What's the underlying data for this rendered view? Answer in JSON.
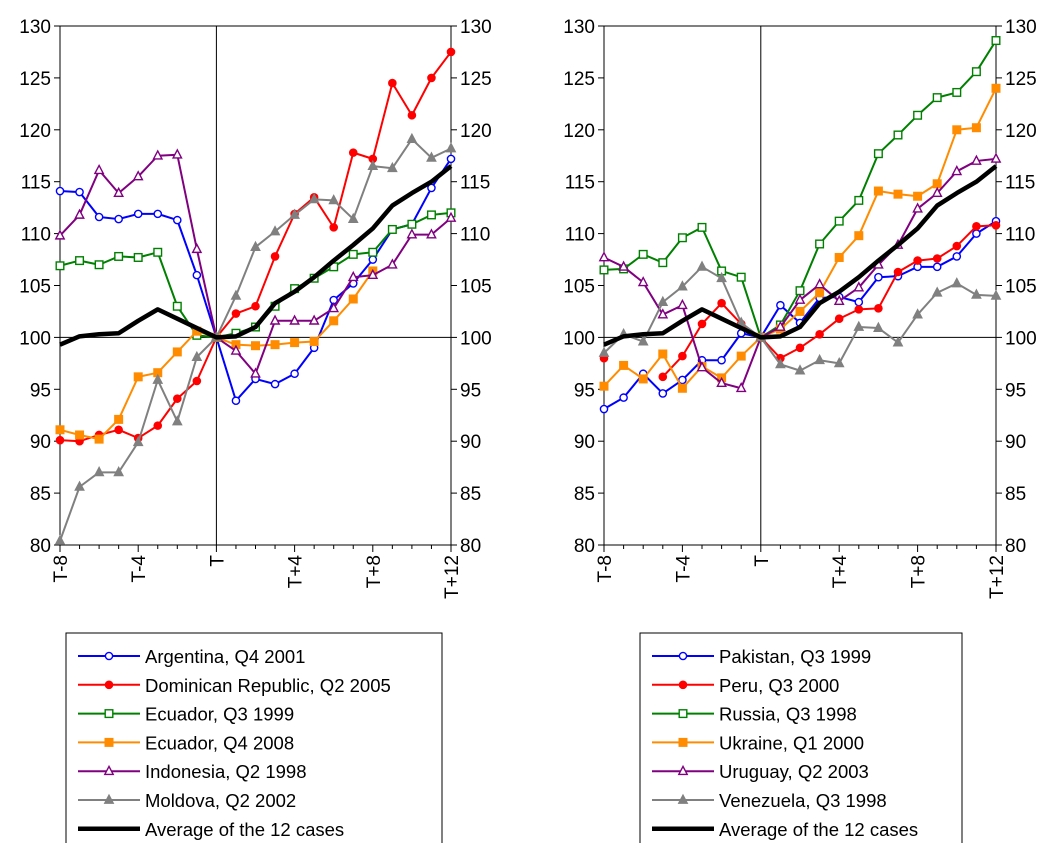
{
  "chart_data": [
    {
      "type": "line",
      "x": [
        "T-8",
        "T-7",
        "T-6",
        "T-5",
        "T-4",
        "T-3",
        "T-2",
        "T-1",
        "T",
        "T+1",
        "T+2",
        "T+3",
        "T+4",
        "T+5",
        "T+6",
        "T+7",
        "T+8",
        "T+9",
        "T+10",
        "T+11",
        "T+12"
      ],
      "x_tick_labels": [
        "T-8",
        "T-4",
        "T",
        "T+4",
        "T+8",
        "T+12"
      ],
      "ylim": [
        80,
        130
      ],
      "y_ticks": [
        80,
        85,
        90,
        95,
        100,
        105,
        110,
        115,
        120,
        125,
        130
      ],
      "reference_line": 100,
      "legend_position": "below",
      "series": [
        {
          "name": "Argentina, Q4 2001",
          "color": "#0000ff",
          "marker": "circle-open",
          "values": [
            114.1,
            114.0,
            111.6,
            111.4,
            111.9,
            111.9,
            111.3,
            106.0,
            100.0,
            93.9,
            96.0,
            95.5,
            96.5,
            99.0,
            103.6,
            105.2,
            107.5,
            110.4,
            110.9,
            114.4,
            117.2
          ]
        },
        {
          "name": "Dominican Republic, Q2 2005",
          "color": "#ff0000",
          "marker": "circle-filled",
          "values": [
            90.1,
            90.0,
            90.6,
            91.1,
            90.3,
            91.5,
            94.1,
            95.8,
            100.0,
            102.3,
            103.0,
            107.8,
            111.9,
            113.5,
            110.6,
            117.8,
            117.2,
            124.5,
            121.4,
            125.0,
            127.5
          ]
        },
        {
          "name": "Ecuador, Q3 1999",
          "color": "#008000",
          "marker": "square-open",
          "values": [
            106.9,
            107.4,
            107.0,
            107.8,
            107.7,
            108.2,
            103.0,
            100.2,
            100.0,
            100.4,
            101.0,
            103.0,
            104.7,
            105.7,
            106.8,
            108.0,
            108.2,
            110.4,
            110.9,
            111.8,
            112.0
          ]
        },
        {
          "name": "Ecuador, Q4 2008",
          "color": "#ff8c00",
          "marker": "square-filled",
          "values": [
            91.1,
            90.6,
            90.2,
            92.1,
            96.2,
            96.6,
            98.6,
            100.6,
            100.0,
            99.3,
            99.2,
            99.3,
            99.5,
            99.6,
            101.6,
            103.7,
            106.4,
            null,
            null,
            null,
            null
          ]
        },
        {
          "name": "Indonesia, Q2 1998",
          "color": "#800080",
          "marker": "triangle-open",
          "values": [
            109.8,
            111.8,
            116.1,
            113.9,
            115.5,
            117.5,
            117.6,
            108.5,
            100.0,
            98.7,
            96.5,
            101.6,
            101.6,
            101.6,
            102.8,
            105.8,
            106.0,
            107.0,
            109.9,
            109.9,
            111.5
          ]
        },
        {
          "name": "Moldova, Q2 2002",
          "color": "#808080",
          "marker": "triangle-filled",
          "values": [
            80.4,
            85.6,
            87.0,
            87.0,
            89.9,
            95.9,
            91.9,
            98.1,
            100.0,
            104.0,
            108.7,
            110.2,
            111.8,
            113.3,
            113.2,
            111.4,
            116.5,
            116.3,
            119.1,
            117.3,
            118.2
          ]
        },
        {
          "name": "Average of the 12 cases",
          "color": "#000000",
          "marker": "none",
          "bold": true,
          "values": [
            99.3,
            100.1,
            100.3,
            100.4,
            101.6,
            102.7,
            101.8,
            100.9,
            100.0,
            100.1,
            101.0,
            103.3,
            104.4,
            105.8,
            107.4,
            108.9,
            110.5,
            112.7,
            113.9,
            115.0,
            116.5
          ]
        }
      ]
    },
    {
      "type": "line",
      "x": [
        "T-8",
        "T-7",
        "T-6",
        "T-5",
        "T-4",
        "T-3",
        "T-2",
        "T-1",
        "T",
        "T+1",
        "T+2",
        "T+3",
        "T+4",
        "T+5",
        "T+6",
        "T+7",
        "T+8",
        "T+9",
        "T+10",
        "T+11",
        "T+12"
      ],
      "x_tick_labels": [
        "T-8",
        "T-4",
        "T",
        "T+4",
        "T+8",
        "T+12"
      ],
      "ylim": [
        80,
        130
      ],
      "y_ticks": [
        80,
        85,
        90,
        95,
        100,
        105,
        110,
        115,
        120,
        125,
        130
      ],
      "reference_line": 100,
      "legend_position": "below",
      "series": [
        {
          "name": "Pakistan, Q3 1999",
          "color": "#0000ff",
          "marker": "circle-open",
          "values": [
            93.1,
            94.2,
            96.5,
            94.6,
            95.9,
            97.8,
            97.8,
            100.4,
            100.0,
            103.1,
            101.4,
            103.8,
            103.9,
            103.4,
            105.8,
            105.9,
            106.8,
            106.8,
            107.8,
            110.0,
            111.2
          ]
        },
        {
          "name": "Peru, Q3 2000",
          "color": "#ff0000",
          "marker": "circle-filled",
          "values": [
            98.0,
            null,
            null,
            96.2,
            98.2,
            101.3,
            103.3,
            101.3,
            100.0,
            98.0,
            99.0,
            100.3,
            101.8,
            102.7,
            102.8,
            106.3,
            107.4,
            107.6,
            108.8,
            110.7,
            110.8
          ]
        },
        {
          "name": "Russia, Q3 1998",
          "color": "#008000",
          "marker": "square-open",
          "values": [
            106.5,
            106.6,
            108.0,
            107.2,
            109.6,
            110.6,
            106.4,
            105.8,
            100.0,
            101.2,
            104.5,
            109.0,
            111.2,
            113.2,
            117.7,
            119.5,
            121.4,
            123.1,
            123.6,
            125.6,
            128.6
          ]
        },
        {
          "name": "Ukraine, Q1 2000",
          "color": "#ff8c00",
          "marker": "square-filled",
          "values": [
            95.3,
            97.3,
            96.0,
            98.4,
            95.1,
            97.2,
            96.1,
            98.2,
            100.0,
            100.8,
            102.5,
            104.3,
            107.7,
            109.8,
            114.1,
            113.8,
            113.6,
            114.8,
            120.0,
            120.2,
            124.0
          ]
        },
        {
          "name": "Uruguay, Q2 2003",
          "color": "#800080",
          "marker": "triangle-open",
          "values": [
            107.7,
            106.8,
            105.3,
            102.2,
            103.1,
            97.1,
            95.6,
            95.1,
            100.0,
            101.0,
            103.6,
            105.1,
            103.5,
            104.8,
            107.0,
            108.9,
            112.4,
            113.9,
            116.0,
            117.0,
            117.2
          ]
        },
        {
          "name": "Venezuela, Q3 1998",
          "color": "#808080",
          "marker": "triangle-filled",
          "values": [
            98.5,
            100.3,
            99.6,
            103.4,
            104.9,
            106.8,
            105.7,
            101.4,
            100.0,
            97.4,
            96.8,
            97.8,
            97.5,
            101.0,
            100.9,
            99.5,
            102.2,
            104.3,
            105.2,
            104.1,
            104.0
          ]
        },
        {
          "name": "Average of the 12 cases",
          "color": "#000000",
          "marker": "none",
          "bold": true,
          "values": [
            99.3,
            100.1,
            100.3,
            100.4,
            101.6,
            102.7,
            101.8,
            100.9,
            100.0,
            100.1,
            101.0,
            103.3,
            104.4,
            105.8,
            107.4,
            108.9,
            110.5,
            112.7,
            113.9,
            115.0,
            116.5
          ]
        }
      ]
    }
  ]
}
